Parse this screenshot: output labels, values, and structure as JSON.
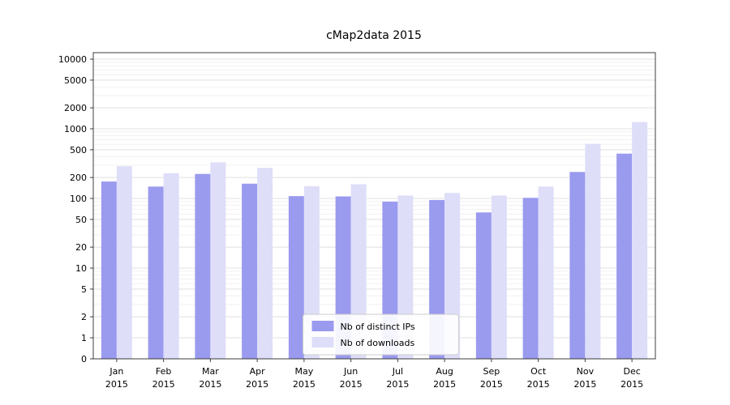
{
  "title": "cMap2data 2015",
  "chart_data": {
    "type": "bar",
    "title": "cMap2data 2015",
    "categories": [
      "Jan",
      "Feb",
      "Mar",
      "Apr",
      "May",
      "Jun",
      "Jul",
      "Aug",
      "Sep",
      "Oct",
      "Nov",
      "Dec"
    ],
    "category_sublabel": "2015",
    "series": [
      {
        "name": "Nb of distinct IPs",
        "color": "#9a9aef",
        "values": [
          175,
          148,
          225,
          163,
          108,
          107,
          90,
          95,
          63,
          102,
          240,
          440
        ]
      },
      {
        "name": "Nb of downloads",
        "color": "#dedef9",
        "values": [
          290,
          230,
          330,
          275,
          150,
          160,
          110,
          120,
          110,
          148,
          610,
          1250
        ]
      }
    ],
    "yscale": "symlog",
    "yticks": [
      0,
      1,
      2,
      5,
      10,
      20,
      50,
      100,
      200,
      500,
      1000,
      2000,
      5000,
      10000
    ],
    "ylim": [
      0,
      13000
    ],
    "xlabel": "",
    "ylabel": "",
    "grid": true,
    "legend": {
      "position": "lower center",
      "entries": [
        "Nb of distinct IPs",
        "Nb of downloads"
      ]
    },
    "colors": {
      "grid_minor": "#f0f0f0",
      "grid_major": "#e2e2e2",
      "spine": "#3c3c3c",
      "legend_border": "#cccccc",
      "legend_bg": "#ffffff"
    }
  }
}
